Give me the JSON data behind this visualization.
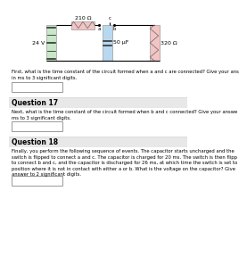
{
  "bg_color": "#ffffff",
  "circuit": {
    "battery_label": "24 V",
    "capacitor_label": "50 μF",
    "resistor1_label": "210 Ω",
    "resistor2_label": "320 Ω",
    "node_a": "a",
    "node_b": "b",
    "node_c": "c"
  },
  "question16_text": "First, what is the time constant of the circuit formed when a and c are connected? Give your ans\nin ms to 3 significant digits.",
  "question17_header": "Question 17",
  "question17_text": "Next, what is the time constant of the circuit formed when b and c connected? Give your answe\nms to 3 significant digits.",
  "question18_header": "Question 18",
  "question18_text": "Finally, you perform the following sequence of events. The capacitor starts uncharged and the\nswitch is flipped to connect a and c. The capacitor is charged for 20 ms. The switch is then flipp\nto connect b and c, and the capacitor is discharged for 26 ms, at which time the switch is set to\nposition where it is not in contact with either a or b. What is the voltage on the capacitor? Give\nanswer to 2 significant digits.",
  "resistor_color": "#f2c4c4",
  "battery_color": "#c8e6c8",
  "capacitor_color": "#b8d8f0",
  "wire_color": "#000000",
  "header_bg": "#e8e8e8",
  "answer_box_color": "#ffffff",
  "answer_box_border": "#999999",
  "divider_color": "#cccccc",
  "text_color": "#000000",
  "text_fontsize": 4.5,
  "header_fontsize": 5.5
}
